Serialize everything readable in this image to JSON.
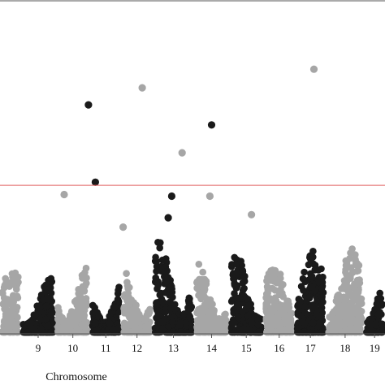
{
  "chart_data": {
    "type": "scatter",
    "subtype": "manhattan",
    "xlabel": "Chromosome",
    "ylabel": "",
    "title": "",
    "grid": false,
    "legend": "none",
    "colors": {
      "dark": "#1a1a1a",
      "light": "#a6a6a6",
      "threshold": "#e06060",
      "axis": "#555555"
    },
    "ylim": [
      0,
      10
    ],
    "threshold": 4.8,
    "chromosomes": [
      {
        "label": "",
        "start": 0.0,
        "end": 0.6,
        "color": "light",
        "peak": 2.2
      },
      {
        "label": "9",
        "start": 0.6,
        "end": 1.6,
        "color": "dark",
        "peak": 1.8
      },
      {
        "label": "10",
        "start": 1.6,
        "end": 2.6,
        "color": "light",
        "peak": 2.3
      },
      {
        "label": "11",
        "start": 2.6,
        "end": 3.5,
        "color": "dark",
        "peak": 2.0
      },
      {
        "label": "12",
        "start": 3.5,
        "end": 4.4,
        "color": "light",
        "peak": 2.6
      },
      {
        "label": "13",
        "start": 4.4,
        "end": 5.6,
        "color": "dark",
        "peak": 3.0
      },
      {
        "label": "14",
        "start": 5.6,
        "end": 6.6,
        "color": "light",
        "peak": 2.4
      },
      {
        "label": "15",
        "start": 6.6,
        "end": 7.6,
        "color": "dark",
        "peak": 2.6
      },
      {
        "label": "16",
        "start": 7.6,
        "end": 8.5,
        "color": "light",
        "peak": 2.2
      },
      {
        "label": "17",
        "start": 8.5,
        "end": 9.4,
        "color": "dark",
        "peak": 2.7
      },
      {
        "label": "18",
        "start": 9.4,
        "end": 10.5,
        "color": "light",
        "peak": 2.8
      },
      {
        "label": "19",
        "start": 10.5,
        "end": 11.1,
        "color": "dark",
        "peak": 2.2
      }
    ],
    "notable_points": [
      {
        "x": 1.85,
        "y": 4.5,
        "color": "light"
      },
      {
        "x": 2.55,
        "y": 7.4,
        "color": "dark"
      },
      {
        "x": 2.75,
        "y": 4.9,
        "color": "dark"
      },
      {
        "x": 3.55,
        "y": 3.45,
        "color": "light"
      },
      {
        "x": 4.1,
        "y": 7.95,
        "color": "light"
      },
      {
        "x": 4.85,
        "y": 3.75,
        "color": "dark"
      },
      {
        "x": 4.95,
        "y": 4.45,
        "color": "dark"
      },
      {
        "x": 5.25,
        "y": 5.85,
        "color": "light"
      },
      {
        "x": 6.05,
        "y": 4.45,
        "color": "light"
      },
      {
        "x": 6.1,
        "y": 6.75,
        "color": "dark"
      },
      {
        "x": 7.25,
        "y": 3.85,
        "color": "light"
      },
      {
        "x": 9.05,
        "y": 8.55,
        "color": "light"
      }
    ]
  }
}
